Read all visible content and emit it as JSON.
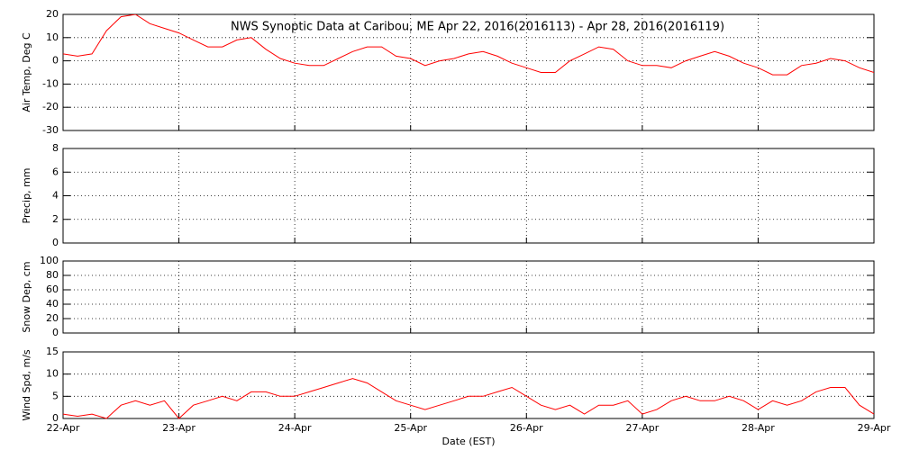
{
  "chart_data": [
    {
      "type": "line",
      "title": "NWS Synoptic Data at Caribou, ME   Apr 22, 2016(2016113) - Apr 28, 2016(2016119)",
      "ylabel": "Air Temp, Deg C",
      "color": "#ff0000",
      "grid": true,
      "ylim": [
        -30,
        20
      ],
      "yticks": [
        -30,
        -20,
        -10,
        0,
        10,
        20
      ],
      "x": [
        0,
        0.125,
        0.25,
        0.375,
        0.5,
        0.625,
        0.75,
        0.875,
        1,
        1.125,
        1.25,
        1.375,
        1.5,
        1.625,
        1.75,
        1.875,
        2,
        2.125,
        2.25,
        2.375,
        2.5,
        2.625,
        2.75,
        2.875,
        3,
        3.125,
        3.25,
        3.375,
        3.5,
        3.625,
        3.75,
        3.875,
        4,
        4.125,
        4.25,
        4.375,
        4.5,
        4.625,
        4.75,
        4.875,
        5,
        5.125,
        5.25,
        5.375,
        5.5,
        5.625,
        5.75,
        5.875,
        6,
        6.125,
        6.25,
        6.375,
        6.5,
        6.625,
        6.75,
        6.875,
        7
      ],
      "values": [
        3,
        2,
        3,
        13,
        19,
        20,
        16,
        14,
        12,
        9,
        6,
        6,
        9,
        10,
        5,
        1,
        -1,
        -2,
        -2,
        1,
        4,
        6,
        6,
        2,
        1,
        -2,
        0,
        1,
        3,
        4,
        2,
        -1,
        -3,
        -5,
        -5,
        0,
        3,
        6,
        5,
        0,
        -2,
        -2,
        -3,
        0,
        2,
        4,
        2,
        -1,
        -3,
        -6,
        -6,
        -2,
        -1,
        1,
        0,
        -3,
        -5
      ]
    },
    {
      "type": "line",
      "ylabel": "Precip, mm",
      "grid": true,
      "ylim": [
        0,
        8
      ],
      "yticks": [
        0,
        2,
        4,
        6,
        8
      ]
    },
    {
      "type": "line",
      "ylabel": "Snow Dep, cm",
      "grid": true,
      "ylim": [
        0,
        100
      ],
      "yticks": [
        0,
        20,
        40,
        60,
        80,
        100
      ]
    },
    {
      "type": "line",
      "ylabel": "Wind Spd, m/s",
      "xlabel": "Date (EST)",
      "color": "#ff0000",
      "grid": true,
      "ylim": [
        0,
        15
      ],
      "yticks": [
        0,
        5,
        10,
        15
      ],
      "xlim": [
        0,
        7
      ],
      "xticks": [
        {
          "value": 0,
          "label": "22-Apr"
        },
        {
          "value": 1,
          "label": "23-Apr"
        },
        {
          "value": 2,
          "label": "24-Apr"
        },
        {
          "value": 3,
          "label": "25-Apr"
        },
        {
          "value": 4,
          "label": "26-Apr"
        },
        {
          "value": 5,
          "label": "27-Apr"
        },
        {
          "value": 6,
          "label": "28-Apr"
        },
        {
          "value": 7,
          "label": "29-Apr"
        }
      ],
      "x": [
        0,
        0.125,
        0.25,
        0.375,
        0.5,
        0.625,
        0.75,
        0.875,
        1,
        1.125,
        1.25,
        1.375,
        1.5,
        1.625,
        1.75,
        1.875,
        2,
        2.125,
        2.25,
        2.375,
        2.5,
        2.625,
        2.75,
        2.875,
        3,
        3.125,
        3.25,
        3.375,
        3.5,
        3.625,
        3.75,
        3.875,
        4,
        4.125,
        4.25,
        4.375,
        4.5,
        4.625,
        4.75,
        4.875,
        5,
        5.125,
        5.25,
        5.375,
        5.5,
        5.625,
        5.75,
        5.875,
        6,
        6.125,
        6.25,
        6.375,
        6.5,
        6.625,
        6.75,
        6.875,
        7
      ],
      "values": [
        1,
        0.5,
        1,
        0,
        3,
        4,
        3,
        4,
        0,
        3,
        4,
        5,
        4,
        6,
        6,
        5,
        5,
        6,
        7,
        8,
        9,
        8,
        6,
        4,
        3,
        2,
        3,
        4,
        5,
        5,
        6,
        7,
        5,
        3,
        2,
        3,
        1,
        3,
        3,
        4,
        1,
        2,
        4,
        5,
        4,
        4,
        5,
        4,
        2,
        4,
        3,
        4,
        6,
        7,
        7,
        3,
        1
      ]
    }
  ]
}
